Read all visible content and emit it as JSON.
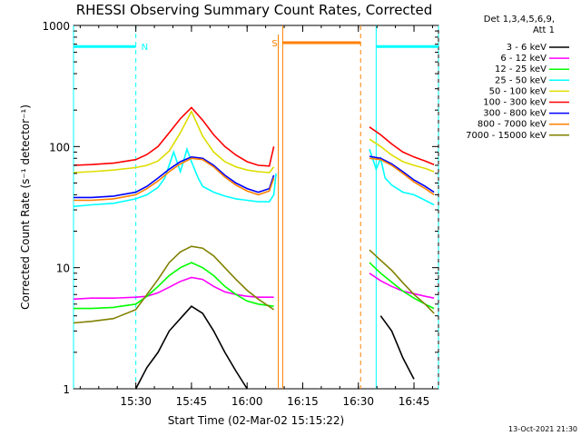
{
  "chart_data": {
    "type": "line",
    "title": "RHESSI Observing Summary Count Rates, Corrected",
    "xlabel": "Start Time (02-Mar-02 15:15:22)",
    "ylabel": "Corrected Count Rate (s⁻¹ detector⁻¹)",
    "ylog": true,
    "xlim": [
      15.22,
      16.86
    ],
    "ylim": [
      1,
      1000
    ],
    "xticks": [
      {
        "label": "15:30",
        "value": 15.5
      },
      {
        "label": "15:45",
        "value": 15.75
      },
      {
        "label": "16:00",
        "value": 16.0
      },
      {
        "label": "16:15",
        "value": 16.25
      },
      {
        "label": "16:30",
        "value": 16.5
      },
      {
        "label": "16:45",
        "value": 16.75
      }
    ],
    "yticks": [
      {
        "label": "1",
        "value": 1
      },
      {
        "label": "10",
        "value": 10
      },
      {
        "label": "100",
        "value": 100
      },
      {
        "label": "1000",
        "value": 1000
      }
    ],
    "legend_header": [
      "Det 1,3,4,5,6,9,",
      "Att 1"
    ],
    "legend_position": "right",
    "series": [
      {
        "name": "3 - 6 keV",
        "color": "#000000",
        "x": [
          15.5,
          15.55,
          15.6,
          15.65,
          15.7,
          15.75,
          15.8,
          15.85,
          15.9,
          15.95,
          16.0,
          16.6,
          16.65,
          16.7,
          16.75
        ],
        "y": [
          1,
          1.5,
          2,
          3,
          3.8,
          4.8,
          4.2,
          3,
          2,
          1.4,
          1,
          4,
          3,
          1.8,
          1.2
        ]
      },
      {
        "name": "6 - 12 keV",
        "color": "#ff00ff",
        "x": [
          15.22,
          15.3,
          15.4,
          15.5,
          15.55,
          15.6,
          15.65,
          15.7,
          15.75,
          15.8,
          15.85,
          15.9,
          15.95,
          16.0,
          16.05,
          16.12,
          16.55,
          16.6,
          16.65,
          16.7,
          16.75,
          16.8,
          16.84
        ],
        "y": [
          5.5,
          5.6,
          5.6,
          5.7,
          5.8,
          6.2,
          6.9,
          7.7,
          8.3,
          8.0,
          7.0,
          6.3,
          6.0,
          5.8,
          5.7,
          5.7,
          9.0,
          7.8,
          7.0,
          6.4,
          6.1,
          5.8,
          5.6
        ]
      },
      {
        "name": "12 - 25 keV",
        "color": "#00ff00",
        "x": [
          15.22,
          15.3,
          15.4,
          15.5,
          15.55,
          15.6,
          15.65,
          15.7,
          15.75,
          15.8,
          15.85,
          15.9,
          15.95,
          16.0,
          16.05,
          16.12,
          16.55,
          16.6,
          16.65,
          16.7,
          16.75,
          16.8,
          16.84
        ],
        "y": [
          4.6,
          4.6,
          4.7,
          5.0,
          5.8,
          7.0,
          8.6,
          10.0,
          11.0,
          10.0,
          8.6,
          7.0,
          6.0,
          5.3,
          5.0,
          4.8,
          11.0,
          9.0,
          7.6,
          6.4,
          5.6,
          5.0,
          4.6
        ]
      },
      {
        "name": "25 - 50 keV",
        "color": "#00ffff",
        "x": [
          15.22,
          15.3,
          15.4,
          15.5,
          15.55,
          15.6,
          15.63,
          15.67,
          15.7,
          15.73,
          15.75,
          15.78,
          15.8,
          15.85,
          15.9,
          15.95,
          16.0,
          16.05,
          16.1,
          16.12,
          16.13,
          16.55,
          16.58,
          16.6,
          16.62,
          16.65,
          16.7,
          16.75,
          16.8,
          16.84
        ],
        "y": [
          32,
          33,
          34,
          37,
          40,
          46,
          55,
          90,
          62,
          95,
          75,
          55,
          47,
          42,
          39,
          37,
          36,
          35,
          35,
          40,
          60,
          95,
          65,
          80,
          55,
          48,
          42,
          40,
          36,
          33
        ]
      },
      {
        "name": "50 - 100 keV",
        "color": "#dddd00",
        "x": [
          15.22,
          15.3,
          15.4,
          15.5,
          15.55,
          15.6,
          15.65,
          15.7,
          15.75,
          15.8,
          15.85,
          15.9,
          15.95,
          16.0,
          16.05,
          16.1,
          16.12,
          16.55,
          16.6,
          16.65,
          16.7,
          16.75,
          16.8,
          16.84
        ],
        "y": [
          61,
          62,
          64,
          67,
          70,
          76,
          92,
          130,
          195,
          122,
          90,
          75,
          68,
          64,
          62,
          61,
          68,
          115,
          100,
          85,
          75,
          70,
          66,
          62
        ]
      },
      {
        "name": "100 - 300 keV",
        "color": "#ff0000",
        "x": [
          15.22,
          15.3,
          15.4,
          15.5,
          15.55,
          15.6,
          15.65,
          15.7,
          15.75,
          15.8,
          15.85,
          15.9,
          15.95,
          16.0,
          16.05,
          16.1,
          16.12,
          16.55,
          16.6,
          16.65,
          16.7,
          16.75,
          16.8,
          16.84
        ],
        "y": [
          70,
          71,
          73,
          78,
          86,
          100,
          130,
          170,
          210,
          165,
          125,
          100,
          85,
          75,
          70,
          69,
          100,
          145,
          125,
          105,
          90,
          82,
          76,
          71
        ]
      },
      {
        "name": "300 - 800 keV",
        "color": "#0000ff",
        "x": [
          15.22,
          15.3,
          15.4,
          15.5,
          15.55,
          15.6,
          15.65,
          15.7,
          15.75,
          15.8,
          15.85,
          15.9,
          15.95,
          16.0,
          16.05,
          16.1,
          16.12,
          16.55,
          16.6,
          16.65,
          16.7,
          16.75,
          16.8,
          16.84
        ],
        "y": [
          38,
          38,
          39,
          42,
          47,
          55,
          65,
          75,
          82,
          80,
          70,
          58,
          50,
          45,
          42,
          45,
          58,
          83,
          80,
          72,
          62,
          53,
          47,
          42
        ]
      },
      {
        "name": "800 - 7000 keV",
        "color": "#ff8000",
        "x": [
          15.22,
          15.3,
          15.4,
          15.5,
          15.55,
          15.6,
          15.65,
          15.7,
          15.75,
          15.8,
          15.85,
          15.9,
          15.95,
          16.0,
          16.05,
          16.1,
          16.12,
          16.55,
          16.6,
          16.65,
          16.7,
          16.75,
          16.8,
          16.84
        ],
        "y": [
          36,
          36,
          37,
          40,
          45,
          52,
          62,
          72,
          80,
          78,
          68,
          56,
          48,
          43,
          40,
          43,
          55,
          80,
          78,
          70,
          60,
          51,
          45,
          40
        ]
      },
      {
        "name": "7000 - 15000 keV",
        "color": "#808000",
        "x": [
          15.22,
          15.3,
          15.4,
          15.5,
          15.55,
          15.6,
          15.65,
          15.7,
          15.75,
          15.8,
          15.85,
          15.9,
          15.95,
          16.0,
          16.05,
          16.12,
          16.55,
          16.6,
          16.65,
          16.7,
          16.75,
          16.8,
          16.84
        ],
        "y": [
          3.5,
          3.6,
          3.8,
          4.5,
          6.0,
          8.0,
          11.0,
          13.5,
          15.0,
          14.5,
          12.5,
          10.0,
          8.0,
          6.5,
          5.5,
          4.5,
          14.0,
          11.5,
          9.5,
          7.5,
          6.0,
          5.0,
          4.2
        ]
      }
    ],
    "annotations": [
      {
        "label": "N",
        "color": "#00ffff",
        "x0": 15.22,
        "x1": 15.5,
        "y": 670,
        "line_x": [
          15.22,
          15.5
        ]
      },
      {
        "label": "S",
        "color": "#ff8000",
        "x0": 16.16,
        "x1": 16.51,
        "y": 720,
        "line_x": [
          16.16,
          16.51
        ]
      },
      {
        "label": "",
        "color": "#00ffff",
        "x0": 16.58,
        "x1": 16.86,
        "y": 670,
        "line_x": [
          16.58,
          16.86
        ]
      }
    ],
    "data_gap": [
      16.14,
      16.54
    ]
  },
  "footer_date": "13-Oct-2021 21:30"
}
